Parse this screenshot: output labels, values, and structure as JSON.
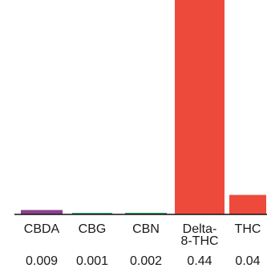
{
  "chart_data": {
    "type": "bar",
    "categories": [
      "CBDA",
      "CBG",
      "CBN",
      "Delta-8-THC",
      "THC"
    ],
    "category_label_lines": [
      [
        "CBDA"
      ],
      [
        "CBG"
      ],
      [
        "CBN"
      ],
      [
        "Delta-",
        "8-THC"
      ],
      [
        "THC"
      ]
    ],
    "values": [
      0.009,
      0.001,
      0.002,
      0.44,
      0.04
    ],
    "value_labels": [
      "0.009",
      "0.001",
      "0.002",
      "0.44",
      "0.04"
    ],
    "colors": [
      "#8b3f8f",
      "#3aa87a",
      "#2f9a5f",
      "#ee4a3b",
      "#ee4a3b"
    ],
    "title": "",
    "xlabel": "",
    "ylabel": "",
    "ylim": [
      0,
      0.44
    ],
    "grid": false,
    "legend": "none"
  }
}
